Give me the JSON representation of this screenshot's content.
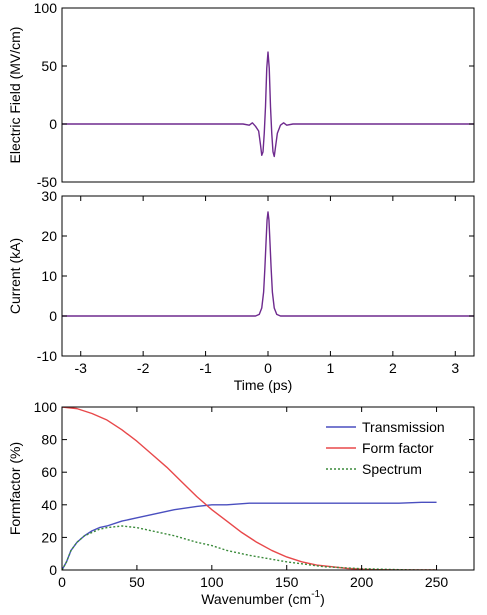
{
  "chart_data": [
    {
      "type": "line",
      "ylabel": "Electric Field (MV/cm)",
      "xlabel": "",
      "xlim": [
        -3.3,
        3.3
      ],
      "ylim": [
        -50,
        100
      ],
      "yticks": [
        -50,
        0,
        50,
        100
      ],
      "xticks": [],
      "grid": false,
      "legend": null,
      "series": [
        {
          "color": "#6e2a8e",
          "x": [
            -3.3,
            -0.4,
            -0.3,
            -0.25,
            -0.2,
            -0.15,
            -0.12,
            -0.1,
            -0.08,
            -0.06,
            -0.04,
            -0.02,
            0.0,
            0.02,
            0.04,
            0.06,
            0.08,
            0.1,
            0.12,
            0.15,
            0.2,
            0.25,
            0.3,
            0.4,
            3.3
          ],
          "y": [
            0,
            0,
            -1,
            1,
            -2,
            -6,
            -18,
            -27,
            -24,
            -8,
            15,
            48,
            62,
            48,
            15,
            -8,
            -24,
            -28,
            -20,
            -8,
            -1,
            1,
            -1,
            0,
            0
          ]
        }
      ]
    },
    {
      "type": "line",
      "ylabel": "Current (kA)",
      "xlabel": "Time (ps)",
      "xlim": [
        -3.3,
        3.3
      ],
      "ylim": [
        -10,
        30
      ],
      "yticks": [
        -10,
        0,
        10,
        20,
        30
      ],
      "xticks": [
        -3,
        -2,
        -1,
        0,
        1,
        2,
        3
      ],
      "grid": false,
      "legend": null,
      "series": [
        {
          "color": "#6e2a8e",
          "x": [
            -3.3,
            -0.2,
            -0.14,
            -0.1,
            -0.07,
            -0.05,
            -0.03,
            -0.015,
            0.0,
            0.015,
            0.03,
            0.05,
            0.07,
            0.1,
            0.14,
            0.2,
            3.3
          ],
          "y": [
            0,
            0,
            0.4,
            2,
            6,
            12,
            19,
            24,
            26,
            24,
            19,
            12,
            6,
            2,
            0.4,
            0,
            0
          ]
        }
      ]
    },
    {
      "type": "line",
      "ylabel": "Formfactor (%)",
      "xlabel": "Wavenumber (cm",
      "xlabel_sup": "-1",
      "xlabel_end": ")",
      "xlim": [
        0,
        275
      ],
      "ylim": [
        0,
        100
      ],
      "yticks": [
        0,
        20,
        40,
        60,
        80,
        100
      ],
      "xticks": [
        0,
        50,
        100,
        150,
        200,
        250
      ],
      "grid": false,
      "legend": "top-right",
      "series": [
        {
          "name": "Transmission",
          "color": "#4a4fbf",
          "style": "solid",
          "x": [
            0,
            3,
            6,
            10,
            15,
            20,
            25,
            30,
            40,
            50,
            60,
            75,
            90,
            100,
            110,
            125,
            150,
            175,
            200,
            225,
            240,
            250
          ],
          "y": [
            0,
            5,
            12,
            17,
            21,
            24,
            26,
            27,
            30,
            32,
            34,
            37,
            39,
            40,
            40,
            41,
            41,
            41,
            41,
            41,
            41.5,
            41.5
          ]
        },
        {
          "name": "Form factor",
          "color": "#e8484a",
          "style": "solid",
          "x": [
            0,
            10,
            20,
            30,
            40,
            50,
            60,
            70,
            80,
            90,
            100,
            110,
            120,
            130,
            140,
            150,
            160,
            170,
            180,
            190,
            200,
            210,
            225,
            250
          ],
          "y": [
            100,
            99,
            96,
            92,
            86,
            79,
            71,
            63,
            54,
            45,
            37,
            30,
            23,
            17,
            12,
            8,
            5,
            3,
            2,
            1,
            0.5,
            0.2,
            0,
            0
          ]
        },
        {
          "name": "Spectrum",
          "color": "#3a8a3a",
          "style": "dotted",
          "x": [
            0,
            3,
            6,
            10,
            15,
            20,
            25,
            30,
            40,
            50,
            60,
            75,
            90,
            100,
            110,
            125,
            150,
            175,
            200,
            225,
            240,
            250
          ],
          "y": [
            0,
            5,
            12,
            17,
            21,
            23,
            25,
            26,
            27,
            26,
            24,
            21,
            17,
            15,
            12,
            9,
            5,
            2,
            0.8,
            0.2,
            0,
            0
          ]
        }
      ]
    }
  ]
}
